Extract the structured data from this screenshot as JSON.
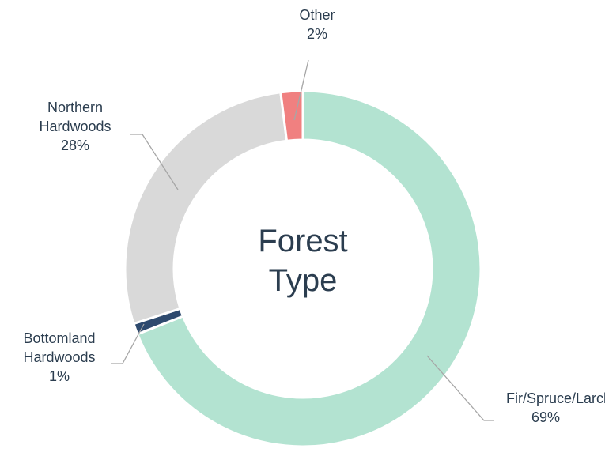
{
  "chart_data": {
    "type": "pie",
    "donut": true,
    "title": "Forest Type",
    "categories": [
      "Fir/Spruce/Larch",
      "Bottomland Hardwoods",
      "Northern Hardwoods",
      "Other"
    ],
    "values": [
      69,
      1,
      28,
      2
    ],
    "value_labels": [
      "69%",
      "1%",
      "28%",
      "2%"
    ],
    "colors": [
      "#b3e3d1",
      "#2e4a6e",
      "#d9d9d9",
      "#f08080"
    ]
  }
}
